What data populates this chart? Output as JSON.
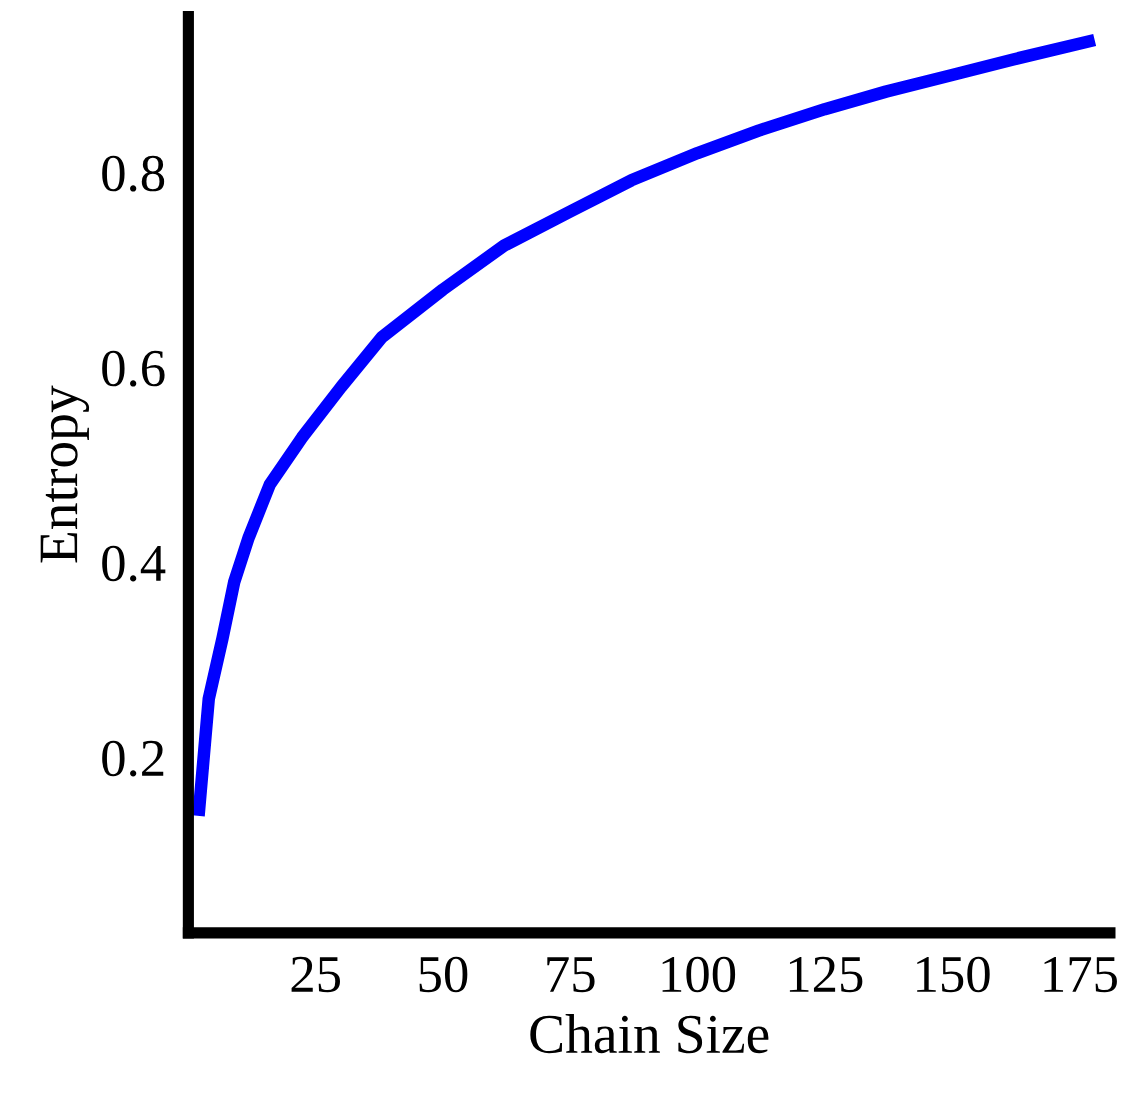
{
  "chart_data": {
    "type": "line",
    "xlabel": "Chain Size",
    "ylabel": "Entropy",
    "x": [
      2,
      4,
      6.7,
      9,
      11.8,
      16,
      22.3,
      30,
      38,
      50,
      62,
      75,
      87,
      100,
      112,
      125,
      137,
      150,
      162,
      178
    ],
    "series": [
      {
        "color": "#0000ff",
        "values": [
          0.14,
          0.26,
          0.322,
          0.38,
          0.425,
          0.48,
          0.528,
          0.58,
          0.631,
          0.68,
          0.725,
          0.76,
          0.792,
          0.82,
          0.843,
          0.865,
          0.883,
          0.9,
          0.916,
          0.936
        ]
      }
    ],
    "xlim": [
      0,
      181
    ],
    "ylim": [
      0.02,
      0.96
    ],
    "xticks": [
      25,
      50,
      75,
      100,
      125,
      150,
      175
    ],
    "yticks": [
      0.2,
      0.4,
      0.6,
      0.8
    ],
    "grid": false,
    "marker": "none",
    "line_style": "solid"
  }
}
